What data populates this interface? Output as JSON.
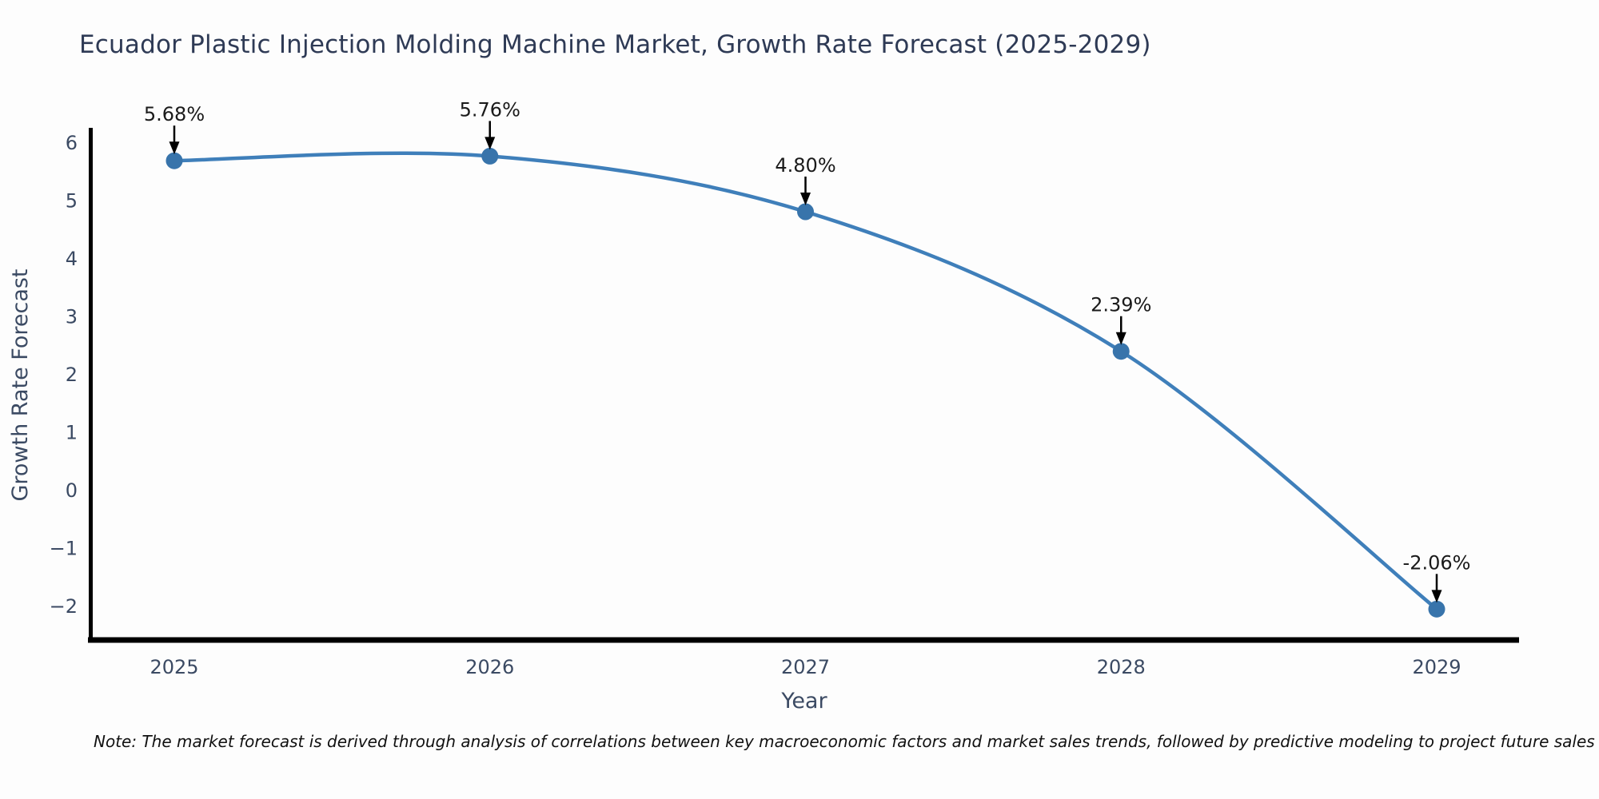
{
  "chart_data": {
    "type": "line",
    "title": "Ecuador Plastic Injection Molding Machine Market, Growth Rate Forecast (2025-2029)",
    "xlabel": "Year",
    "ylabel": "Growth Rate Forecast",
    "x": [
      2025,
      2026,
      2027,
      2028,
      2029
    ],
    "series": [
      {
        "name": "Growth Rate Forecast",
        "values": [
          5.68,
          5.76,
          4.8,
          2.39,
          -2.06
        ]
      }
    ],
    "point_labels": [
      "5.68%",
      "5.76%",
      "4.80%",
      "2.39%",
      "-2.06%"
    ],
    "x_tick_labels": [
      "2025",
      "2026",
      "2027",
      "2028",
      "2029"
    ],
    "y_ticks": [
      {
        "value": 6,
        "label": "6"
      },
      {
        "value": 5,
        "label": "5"
      },
      {
        "value": 4,
        "label": "4"
      },
      {
        "value": 3,
        "label": "3"
      },
      {
        "value": 2,
        "label": "2"
      },
      {
        "value": 1,
        "label": "1"
      },
      {
        "value": 0,
        "label": "0"
      },
      {
        "value": -1,
        "label": "−1"
      },
      {
        "value": -2,
        "label": "−2"
      }
    ],
    "ylim": [
      -2.6,
      6.25
    ],
    "grid": false,
    "legend": null,
    "colors": {
      "line": "#3f7fba",
      "marker": "#3874ab",
      "axis": "#000000",
      "tick_text": "#3b4a63",
      "axis_title_text": "#3b4a63",
      "annotation_text": "#1a1a1a",
      "annotation_arrow": "#000000",
      "title_text": "#2e3a55",
      "background": "#fdfdfd"
    }
  },
  "note": "Note: The market forecast is derived through analysis of correlations between key macroeconomic factors and market sales trends, followed by predictive modeling to project future sales"
}
